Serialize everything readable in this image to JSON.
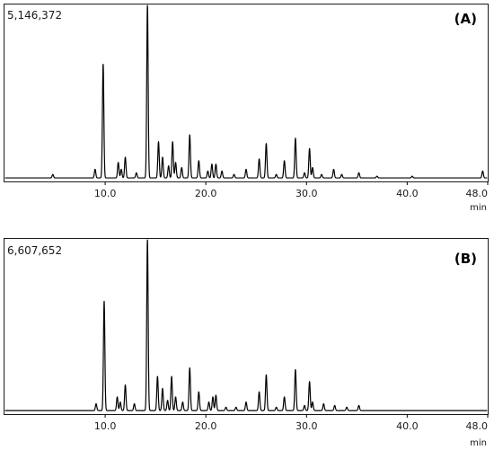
{
  "chart_data": [
    {
      "type": "line",
      "panel_label": "(A)",
      "max_intensity_label": "5,146,372",
      "xlabel": "min",
      "xlim": [
        0,
        48.0
      ],
      "ylim": [
        0,
        5146372
      ],
      "x_ticks": [
        10.0,
        20.0,
        30.0,
        40.0,
        48.0
      ],
      "x_tick_labels": [
        "10.0",
        "20.0",
        "30.0",
        "40.0",
        "48.0"
      ],
      "grid": false,
      "color": "#000000",
      "baseline_fraction": 0.02,
      "peaks": [
        {
          "rt": 4.8,
          "rel": 0.02
        },
        {
          "rt": 9.0,
          "rel": 0.05
        },
        {
          "rt": 9.8,
          "rel": 0.66
        },
        {
          "rt": 11.3,
          "rel": 0.09
        },
        {
          "rt": 11.6,
          "rel": 0.05
        },
        {
          "rt": 12.0,
          "rel": 0.12
        },
        {
          "rt": 13.1,
          "rel": 0.03
        },
        {
          "rt": 14.2,
          "rel": 1.0
        },
        {
          "rt": 15.3,
          "rel": 0.21
        },
        {
          "rt": 15.7,
          "rel": 0.12
        },
        {
          "rt": 16.3,
          "rel": 0.07
        },
        {
          "rt": 16.7,
          "rel": 0.21
        },
        {
          "rt": 17.0,
          "rel": 0.09
        },
        {
          "rt": 17.6,
          "rel": 0.06
        },
        {
          "rt": 18.4,
          "rel": 0.25
        },
        {
          "rt": 19.3,
          "rel": 0.1
        },
        {
          "rt": 20.2,
          "rel": 0.04
        },
        {
          "rt": 20.6,
          "rel": 0.08
        },
        {
          "rt": 21.0,
          "rel": 0.08
        },
        {
          "rt": 21.6,
          "rel": 0.04
        },
        {
          "rt": 22.8,
          "rel": 0.02
        },
        {
          "rt": 24.0,
          "rel": 0.05
        },
        {
          "rt": 25.3,
          "rel": 0.11
        },
        {
          "rt": 26.0,
          "rel": 0.2
        },
        {
          "rt": 27.0,
          "rel": 0.02
        },
        {
          "rt": 27.8,
          "rel": 0.1
        },
        {
          "rt": 28.9,
          "rel": 0.23
        },
        {
          "rt": 29.8,
          "rel": 0.03
        },
        {
          "rt": 30.3,
          "rel": 0.17
        },
        {
          "rt": 30.6,
          "rel": 0.06
        },
        {
          "rt": 31.5,
          "rel": 0.02
        },
        {
          "rt": 32.7,
          "rel": 0.05
        },
        {
          "rt": 33.5,
          "rel": 0.02
        },
        {
          "rt": 35.2,
          "rel": 0.03
        },
        {
          "rt": 37.0,
          "rel": 0.01
        },
        {
          "rt": 40.5,
          "rel": 0.01
        },
        {
          "rt": 47.5,
          "rel": 0.04
        }
      ]
    },
    {
      "type": "line",
      "panel_label": "(B)",
      "max_intensity_label": "6,607,652",
      "xlabel": "min",
      "xlim": [
        0,
        48.0
      ],
      "ylim": [
        0,
        6607652
      ],
      "x_ticks": [
        10.0,
        20.0,
        30.0,
        40.0,
        48.0
      ],
      "x_tick_labels": [
        "10.0",
        "20.0",
        "30.0",
        "40.0",
        "48.0"
      ],
      "grid": false,
      "color": "#000000",
      "baseline_fraction": 0.02,
      "peaks": [
        {
          "rt": 9.1,
          "rel": 0.04
        },
        {
          "rt": 9.9,
          "rel": 0.64
        },
        {
          "rt": 11.2,
          "rel": 0.08
        },
        {
          "rt": 11.5,
          "rel": 0.05
        },
        {
          "rt": 12.0,
          "rel": 0.15
        },
        {
          "rt": 12.9,
          "rel": 0.04
        },
        {
          "rt": 14.2,
          "rel": 1.0
        },
        {
          "rt": 15.2,
          "rel": 0.2
        },
        {
          "rt": 15.7,
          "rel": 0.13
        },
        {
          "rt": 16.2,
          "rel": 0.06
        },
        {
          "rt": 16.6,
          "rel": 0.2
        },
        {
          "rt": 17.0,
          "rel": 0.08
        },
        {
          "rt": 17.7,
          "rel": 0.05
        },
        {
          "rt": 18.4,
          "rel": 0.25
        },
        {
          "rt": 19.3,
          "rel": 0.11
        },
        {
          "rt": 20.3,
          "rel": 0.05
        },
        {
          "rt": 20.7,
          "rel": 0.08
        },
        {
          "rt": 21.0,
          "rel": 0.09
        },
        {
          "rt": 22.0,
          "rel": 0.02
        },
        {
          "rt": 23.0,
          "rel": 0.02
        },
        {
          "rt": 24.0,
          "rel": 0.05
        },
        {
          "rt": 25.3,
          "rel": 0.11
        },
        {
          "rt": 26.0,
          "rel": 0.21
        },
        {
          "rt": 27.0,
          "rel": 0.02
        },
        {
          "rt": 27.8,
          "rel": 0.08
        },
        {
          "rt": 28.9,
          "rel": 0.24
        },
        {
          "rt": 29.8,
          "rel": 0.03
        },
        {
          "rt": 30.3,
          "rel": 0.17
        },
        {
          "rt": 30.6,
          "rel": 0.05
        },
        {
          "rt": 31.7,
          "rel": 0.04
        },
        {
          "rt": 32.8,
          "rel": 0.03
        },
        {
          "rt": 34.0,
          "rel": 0.02
        },
        {
          "rt": 35.2,
          "rel": 0.03
        }
      ]
    }
  ]
}
